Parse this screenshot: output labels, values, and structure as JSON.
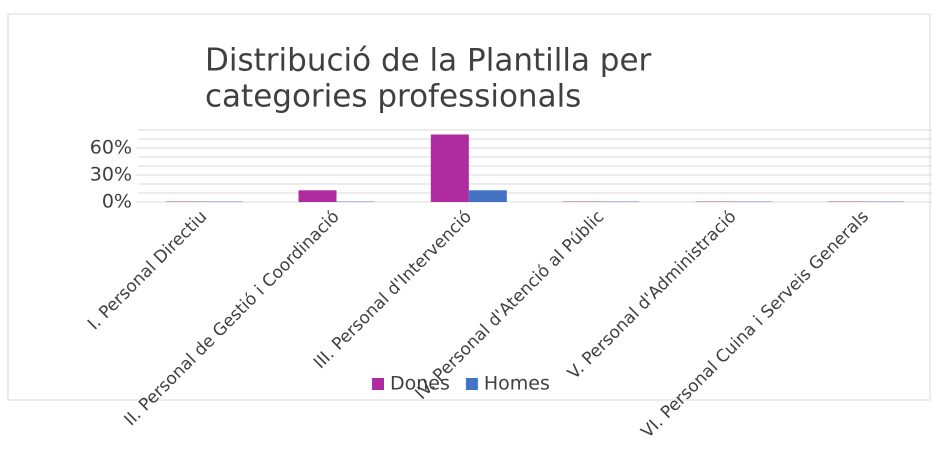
{
  "chart_data": {
    "type": "bar",
    "title": [
      "Distribució de la Plantilla per",
      "categories professionals"
    ],
    "categories": [
      "I. Personal Directiu",
      "II. Personal de Gestió i Coordinació",
      "III. Personal d'Intervenció",
      "IV. Personal d'Atenció al Públic",
      "V. Personal d'Administració",
      "VI. Personal Cuina i Serveis Generals"
    ],
    "series": [
      {
        "name": "Dones",
        "color": "#ae2ba0",
        "values": [
          0.5,
          13,
          75,
          0.5,
          0.5,
          0.5
        ]
      },
      {
        "name": "Homes",
        "color": "#4472c4",
        "values": [
          0.5,
          0.5,
          13,
          0.5,
          0.5,
          0.5
        ]
      }
    ],
    "ylim": [
      0,
      80
    ],
    "yticks": [
      {
        "value": 0,
        "label": "0%"
      },
      {
        "value": 30,
        "label": "30%"
      },
      {
        "value": 60,
        "label": "60%"
      }
    ],
    "grid_lines": [
      0,
      10,
      20,
      30,
      40,
      50,
      60,
      70,
      80
    ],
    "legend": "bottom"
  }
}
